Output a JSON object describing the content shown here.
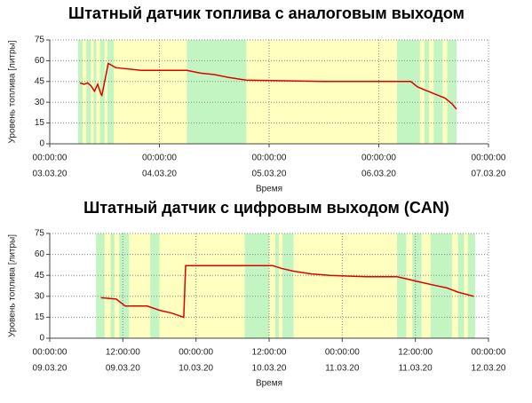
{
  "chart_data": [
    {
      "type": "line",
      "title": "Штатный датчик топлива с аналоговым выходом",
      "y_label": "Уровень топлива [литры]",
      "x_label": "Время",
      "color": "#e00000",
      "background_color": "#ffffc0",
      "band_color": "#c2f5c2",
      "grid": true,
      "active_range": [
        6.2,
        89
      ],
      "bands": [
        [
          6.2,
          7.2
        ],
        [
          8,
          9
        ],
        [
          9.6,
          10.2
        ],
        [
          11,
          12
        ],
        [
          12.6,
          14
        ],
        [
          30,
          43
        ],
        [
          76,
          81
        ],
        [
          82,
          83
        ],
        [
          84,
          86
        ],
        [
          87,
          89
        ]
      ],
      "x": [
        6.6,
        7.5,
        8.3,
        9,
        9.8,
        10.5,
        11.2,
        11.4,
        12.2,
        12.8,
        13.4,
        14.4,
        20,
        30,
        33,
        36,
        39,
        42,
        43,
        60,
        79,
        80.5,
        82,
        83.5,
        85,
        86.5,
        88,
        89
      ],
      "values": [
        44,
        43,
        44,
        42,
        38,
        43,
        36,
        35,
        48,
        58,
        57,
        55,
        53,
        53,
        51,
        50,
        48,
        46.5,
        46,
        45,
        45,
        41,
        39,
        37,
        35,
        33,
        29,
        25
      ],
      "xlim": [
        0,
        96
      ],
      "ylim": [
        0,
        75
      ],
      "yticks": [
        0,
        15,
        30,
        45,
        60,
        75
      ],
      "xticks": [
        {
          "value": 0,
          "label": "00:00:00"
        },
        {
          "value": 24,
          "label": "00:00:00"
        },
        {
          "value": 48,
          "label": "00:00:00"
        },
        {
          "value": 72,
          "label": "00:00:00"
        },
        {
          "value": 96,
          "label": "00:00:00"
        }
      ],
      "xtick_dates": [
        "03.03.20",
        "04.03.20",
        "05.03.20",
        "06.03.20",
        "07.03.20"
      ]
    },
    {
      "type": "line",
      "title": "Штатный датчик с цифровым выходом (CAN)",
      "y_label": "Уровень топлива [литры]",
      "x_label": "Время",
      "color": "#e00000",
      "background_color": "#ffffc0",
      "band_color": "#c2f5c2",
      "grid": true,
      "active_range": [
        7.6,
        69.8
      ],
      "bands": [
        [
          7.6,
          9
        ],
        [
          10,
          10.6
        ],
        [
          11.4,
          13
        ],
        [
          16.5,
          18
        ],
        [
          32,
          36
        ],
        [
          37,
          37.6
        ],
        [
          38.2,
          40
        ],
        [
          57,
          58.5
        ],
        [
          59.5,
          61
        ],
        [
          62.5,
          66
        ],
        [
          67,
          68
        ],
        [
          68.6,
          69.8
        ]
      ],
      "x": [
        8.4,
        10.9,
        12.4,
        16,
        18,
        20,
        22,
        22.3,
        30,
        36.6,
        38,
        40,
        43,
        46,
        52,
        57,
        59,
        61,
        63,
        65.2,
        67,
        69.6
      ],
      "values": [
        29,
        28,
        23,
        23,
        20,
        18,
        15,
        52,
        52,
        52,
        50,
        48,
        46,
        45,
        44,
        44,
        42,
        40,
        38,
        36,
        33,
        30
      ],
      "xlim": [
        0,
        72
      ],
      "ylim": [
        0,
        75
      ],
      "yticks": [
        0,
        15,
        30,
        45,
        60,
        75
      ],
      "xticks": [
        {
          "value": 0,
          "label": "00:00:00"
        },
        {
          "value": 12,
          "label": "12:00:00"
        },
        {
          "value": 24,
          "label": "00:00:00"
        },
        {
          "value": 36,
          "label": "12:00:00"
        },
        {
          "value": 48,
          "label": "00:00:00"
        },
        {
          "value": 60,
          "label": "12:00:00"
        },
        {
          "value": 72,
          "label": "00:00:00"
        }
      ],
      "xtick_dates": [
        "09.03.20",
        "09.03.20",
        "10.03.20",
        "10.03.20",
        "11.03.20",
        "11.03.20",
        "12.03.20"
      ]
    }
  ]
}
